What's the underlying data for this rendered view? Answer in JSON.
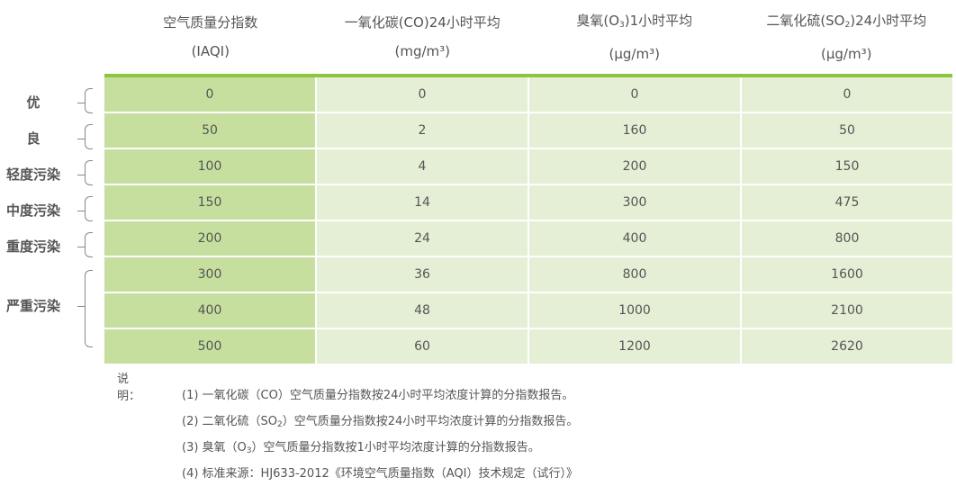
{
  "header": {
    "col1": {
      "line1": "空气质量分指数",
      "line2": "(IAQI)"
    },
    "col2": {
      "line1": "一氧化碳(CO)24小时平均",
      "line2": "(mg/m³)"
    },
    "col3": {
      "line1_pre": "臭氧(O",
      "line1_sub": "3",
      "line1_post": ")1小时平均",
      "line2": "(μg/m³)"
    },
    "col4": {
      "line1_pre": "二氧化硫(SO",
      "line1_sub": "2",
      "line1_post": ")24小时平均",
      "line2": "(μg/m³)"
    }
  },
  "rows": [
    [
      "0",
      "0",
      "0",
      "0"
    ],
    [
      "50",
      "2",
      "160",
      "50"
    ],
    [
      "100",
      "4",
      "200",
      "150"
    ],
    [
      "150",
      "14",
      "300",
      "475"
    ],
    [
      "200",
      "24",
      "400",
      "800"
    ],
    [
      "300",
      "36",
      "800",
      "1600"
    ],
    [
      "400",
      "48",
      "1000",
      "2100"
    ],
    [
      "500",
      "60",
      "1200",
      "2620"
    ]
  ],
  "levels": [
    "优",
    "良",
    "轻度污染",
    "中度污染",
    "重度污染",
    "严重污染"
  ],
  "notes": {
    "label": "说明：",
    "n1": "(1) 一氧化碳（CO）空气质量分指数按24小时平均浓度计算的分指数报告。",
    "n2_pre": "(2) 二氧化硫（SO",
    "n2_sub": "2",
    "n2_post": "）空气质量分指数按24小时平均浓度计算的分指数报告。",
    "n3_pre": "(3) 臭氧（O",
    "n3_sub": "3",
    "n3_post": "）空气质量分指数按1小时平均浓度计算的分指数报告。",
    "n4": "(4) 标准来源：HJ633-2012《环境空气质量指数（AQI）技术规定（试行）》"
  },
  "colors": {
    "accent": "#8cc63f",
    "first_col": "#c6df9f",
    "cells": "#e5efd5"
  }
}
